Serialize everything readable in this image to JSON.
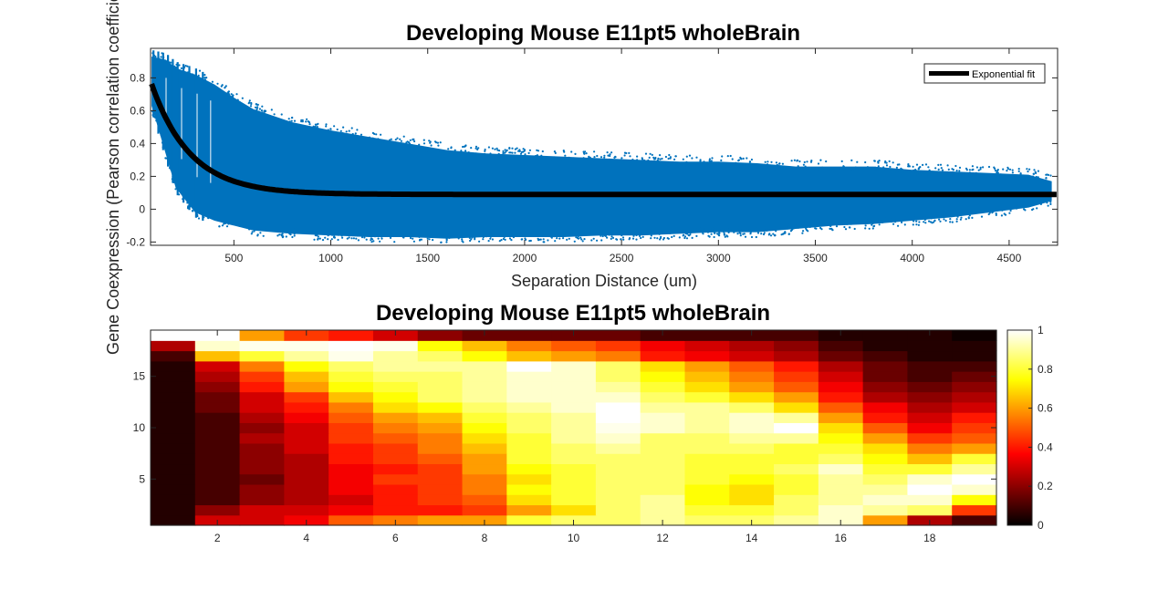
{
  "chart_data": [
    {
      "type": "scatter",
      "title": "Developing Mouse E11pt5 wholeBrain",
      "xlabel": "Separation Distance (um)",
      "ylabel": "Gene Coexpression (Pearson correlation coefficient)",
      "xlim": [
        70,
        4750
      ],
      "ylim": [
        -0.22,
        0.98
      ],
      "xticks": [
        500,
        1000,
        1500,
        2000,
        2500,
        3000,
        3500,
        4000,
        4500
      ],
      "yticks": [
        -0.2,
        0,
        0.2,
        0.4,
        0.6,
        0.8
      ],
      "grid": false,
      "legend": {
        "location": "top-right",
        "entries": [
          "Exponential fit"
        ]
      },
      "point_color": "#0072BD",
      "fit_color": "#000000",
      "series": [
        {
          "name": "data",
          "kind": "scatter-envelope",
          "x": [
            75,
            150,
            200,
            300,
            400,
            500,
            600,
            800,
            1000,
            1200,
            1400,
            1600,
            1800,
            2000,
            2200,
            2400,
            2600,
            2800,
            3000,
            3200,
            3400,
            3600,
            3800,
            4000,
            4200,
            4400,
            4600,
            4720
          ],
          "upper": [
            0.97,
            0.95,
            0.9,
            0.86,
            0.8,
            0.72,
            0.65,
            0.57,
            0.52,
            0.48,
            0.44,
            0.4,
            0.38,
            0.37,
            0.36,
            0.35,
            0.34,
            0.33,
            0.33,
            0.32,
            0.3,
            0.3,
            0.3,
            0.28,
            0.27,
            0.26,
            0.25,
            0.21
          ],
          "lower": [
            0.6,
            0.3,
            0.1,
            -0.05,
            -0.1,
            -0.13,
            -0.16,
            -0.18,
            -0.19,
            -0.2,
            -0.2,
            -0.21,
            -0.2,
            -0.2,
            -0.2,
            -0.19,
            -0.19,
            -0.18,
            -0.17,
            -0.17,
            -0.15,
            -0.13,
            -0.12,
            -0.1,
            -0.08,
            -0.05,
            -0.02,
            0.02
          ]
        },
        {
          "name": "Exponential fit",
          "kind": "line",
          "model": "y = a*exp(-x/b) + c",
          "a": 0.98,
          "b": 200,
          "c": 0.09,
          "x_range": [
            75,
            4750
          ]
        }
      ]
    },
    {
      "type": "heatmap",
      "title": "Developing Mouse E11pt5 wholeBrain",
      "xlim": [
        0.5,
        19.5
      ],
      "ylim": [
        0.5,
        19.5
      ],
      "xticks": [
        2,
        4,
        6,
        8,
        10,
        12,
        14,
        16,
        18
      ],
      "yticks": [
        5,
        10,
        15
      ],
      "colormap": "hot",
      "colorbar": {
        "location": "right",
        "ticks": [
          0,
          0.2,
          0.4,
          0.6,
          0.8,
          1
        ],
        "range": [
          0,
          1
        ]
      },
      "values": [
        [
          0.05,
          0.3,
          0.3,
          0.35,
          0.5,
          0.55,
          0.6,
          0.6,
          0.8,
          0.85,
          0.85,
          0.9,
          0.85,
          0.85,
          0.9,
          0.95,
          0.6,
          0.25,
          0.1
        ],
        [
          0.05,
          0.2,
          0.3,
          0.3,
          0.35,
          0.4,
          0.4,
          0.45,
          0.6,
          0.7,
          0.85,
          0.9,
          0.8,
          0.8,
          0.85,
          0.95,
          0.9,
          0.85,
          0.45
        ],
        [
          0.05,
          0.1,
          0.2,
          0.25,
          0.3,
          0.4,
          0.45,
          0.5,
          0.7,
          0.8,
          0.85,
          0.9,
          0.75,
          0.7,
          0.85,
          0.9,
          0.95,
          0.95,
          0.75
        ],
        [
          0.05,
          0.1,
          0.2,
          0.25,
          0.35,
          0.4,
          0.45,
          0.55,
          0.75,
          0.8,
          0.85,
          0.85,
          0.75,
          0.7,
          0.8,
          0.9,
          0.9,
          1.0,
          0.95
        ],
        [
          0.05,
          0.1,
          0.15,
          0.25,
          0.35,
          0.45,
          0.45,
          0.55,
          0.7,
          0.8,
          0.85,
          0.85,
          0.8,
          0.75,
          0.8,
          0.9,
          0.85,
          0.95,
          1.0
        ],
        [
          0.05,
          0.1,
          0.2,
          0.25,
          0.35,
          0.4,
          0.45,
          0.6,
          0.75,
          0.8,
          0.85,
          0.85,
          0.8,
          0.8,
          0.85,
          0.95,
          0.8,
          0.8,
          0.9
        ],
        [
          0.05,
          0.1,
          0.2,
          0.25,
          0.4,
          0.45,
          0.5,
          0.6,
          0.8,
          0.85,
          0.85,
          0.85,
          0.8,
          0.8,
          0.8,
          0.85,
          0.75,
          0.65,
          0.8
        ],
        [
          0.05,
          0.1,
          0.2,
          0.3,
          0.4,
          0.45,
          0.55,
          0.65,
          0.8,
          0.85,
          0.9,
          0.85,
          0.85,
          0.85,
          0.8,
          0.8,
          0.7,
          0.55,
          0.6
        ],
        [
          0.05,
          0.1,
          0.25,
          0.3,
          0.45,
          0.5,
          0.55,
          0.7,
          0.8,
          0.9,
          0.95,
          0.85,
          0.85,
          0.9,
          0.9,
          0.75,
          0.6,
          0.45,
          0.5
        ],
        [
          0.05,
          0.1,
          0.2,
          0.3,
          0.45,
          0.55,
          0.6,
          0.75,
          0.85,
          0.9,
          0.98,
          0.95,
          0.9,
          0.95,
          1.0,
          0.7,
          0.5,
          0.35,
          0.45
        ],
        [
          0.05,
          0.1,
          0.25,
          0.35,
          0.5,
          0.6,
          0.65,
          0.8,
          0.85,
          0.9,
          1.0,
          0.95,
          0.9,
          0.95,
          0.9,
          0.6,
          0.4,
          0.3,
          0.4
        ],
        [
          0.05,
          0.15,
          0.3,
          0.4,
          0.55,
          0.7,
          0.75,
          0.85,
          0.9,
          0.95,
          1.0,
          0.9,
          0.9,
          0.85,
          0.7,
          0.5,
          0.35,
          0.25,
          0.3
        ],
        [
          0.05,
          0.15,
          0.3,
          0.45,
          0.65,
          0.75,
          0.85,
          0.9,
          0.95,
          0.95,
          0.95,
          0.85,
          0.8,
          0.7,
          0.6,
          0.4,
          0.25,
          0.2,
          0.25
        ],
        [
          0.05,
          0.2,
          0.4,
          0.6,
          0.75,
          0.8,
          0.85,
          0.9,
          0.95,
          0.95,
          0.9,
          0.8,
          0.7,
          0.6,
          0.5,
          0.35,
          0.2,
          0.15,
          0.2
        ],
        [
          0.05,
          0.25,
          0.45,
          0.65,
          0.8,
          0.85,
          0.85,
          0.9,
          0.95,
          0.95,
          0.85,
          0.75,
          0.65,
          0.55,
          0.45,
          0.3,
          0.15,
          0.1,
          0.15
        ],
        [
          0.05,
          0.3,
          0.55,
          0.75,
          0.85,
          0.9,
          0.9,
          0.9,
          1.0,
          0.95,
          0.85,
          0.7,
          0.6,
          0.5,
          0.4,
          0.25,
          0.15,
          0.1,
          0.1
        ],
        [
          0.1,
          0.65,
          0.8,
          0.9,
          0.98,
          0.9,
          0.85,
          0.75,
          0.65,
          0.6,
          0.55,
          0.4,
          0.35,
          0.3,
          0.25,
          0.15,
          0.1,
          0.05,
          0.05
        ],
        [
          0.25,
          0.95,
          0.98,
          0.98,
          1.0,
          0.98,
          0.75,
          0.65,
          0.55,
          0.5,
          0.45,
          0.35,
          0.3,
          0.25,
          0.2,
          0.1,
          0.05,
          0.05,
          0.05
        ],
        [
          1.0,
          1.0,
          0.6,
          0.45,
          0.4,
          0.3,
          0.2,
          0.15,
          0.15,
          0.15,
          0.15,
          0.1,
          0.1,
          0.1,
          0.1,
          0.05,
          0.05,
          0.05,
          0.02
        ]
      ]
    }
  ]
}
